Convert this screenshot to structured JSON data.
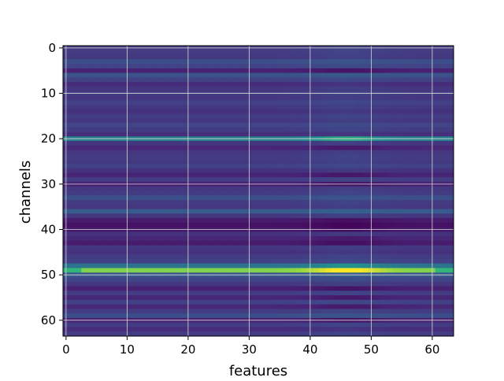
{
  "chart_data": {
    "type": "heatmap",
    "title": "",
    "xlabel": "features",
    "ylabel": "channels",
    "x_ticks": [
      0,
      10,
      20,
      30,
      40,
      50,
      60
    ],
    "y_ticks": [
      0,
      10,
      20,
      30,
      40,
      50,
      60
    ],
    "x_range": [
      -0.5,
      63.5
    ],
    "y_range": [
      63.5,
      -0.5
    ],
    "grid": true,
    "colormap": "viridis",
    "n_features": 64,
    "n_channels": 64,
    "channel_levels": [
      0.22,
      0.22,
      0.21,
      0.3,
      0.25,
      0.12,
      0.32,
      0.24,
      0.16,
      0.2,
      0.22,
      0.2,
      0.24,
      0.21,
      0.18,
      0.22,
      0.2,
      0.25,
      0.22,
      0.17,
      0.55,
      0.2,
      0.14,
      0.2,
      0.22,
      0.21,
      0.24,
      0.18,
      0.13,
      0.22,
      0.12,
      0.2,
      0.22,
      0.3,
      0.22,
      0.2,
      0.36,
      0.2,
      0.1,
      0.06,
      0.09,
      0.18,
      0.14,
      0.1,
      0.2,
      0.18,
      0.22,
      0.24,
      0.48,
      0.86,
      0.34,
      0.26,
      0.2,
      0.12,
      0.22,
      0.14,
      0.24,
      0.14,
      0.22,
      0.3,
      0.12,
      0.22,
      0.16,
      0.22
    ],
    "feature_bump": {
      "center": 46,
      "width": 6,
      "strength": 0.12
    },
    "colors": {
      "grid": "#d8d8d8",
      "axis": "#000000"
    }
  }
}
